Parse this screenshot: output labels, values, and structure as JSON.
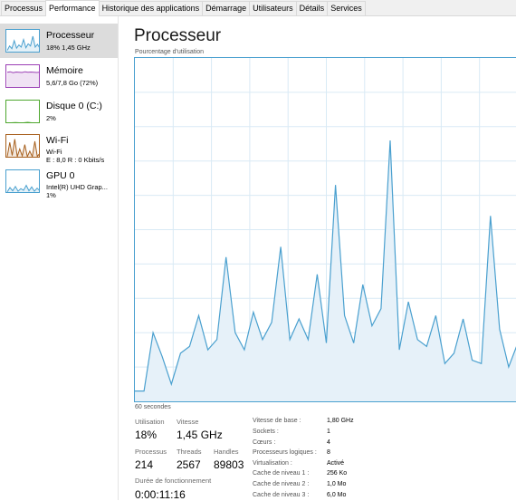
{
  "tabs": [
    "Processus",
    "Performance",
    "Historique des applications",
    "Démarrage",
    "Utilisateurs",
    "Détails",
    "Services"
  ],
  "active_tab": "Performance",
  "sidebar": [
    {
      "title": "Processeur",
      "sub1": "18% 1,45 GHz",
      "sub2": "",
      "color": "#4aa0cf",
      "icon": "cpu-spark",
      "selected": true,
      "spark": [
        0.1,
        0.3,
        0.18,
        0.55,
        0.2,
        0.35,
        0.25,
        0.6,
        0.22,
        0.4,
        0.3,
        0.75,
        0.25,
        0.38,
        0.2
      ]
    },
    {
      "title": "Mémoire",
      "sub1": "5,6/7,8 Go (72%)",
      "sub2": "",
      "color": "#9b3fb5",
      "icon": "memory-spark",
      "selected": false,
      "spark": [
        0.72,
        0.74,
        0.7,
        0.73,
        0.72,
        0.71,
        0.74,
        0.72,
        0.73,
        0.72,
        0.71,
        0.72
      ]
    },
    {
      "title": "Disque 0 (C:)",
      "sub1": "2%",
      "sub2": "",
      "color": "#4ea72e",
      "icon": "disk-spark",
      "selected": false,
      "spark": [
        0.02,
        0.02,
        0.03,
        0.02,
        0.02,
        0.04,
        0.02,
        0.02,
        0.02
      ]
    },
    {
      "title": "Wi-Fi",
      "sub1": "Wi-Fi",
      "sub2": "E : 8,0 R : 0 Kbits/s",
      "color": "#a75f1c",
      "icon": "wifi-spark",
      "selected": false,
      "spark": [
        0.05,
        0.7,
        0.1,
        0.85,
        0.05,
        0.4,
        0.08,
        0.6,
        0.05,
        0.3,
        0.05,
        0.75,
        0.06,
        0.2
      ]
    },
    {
      "title": "GPU 0",
      "sub1": "Intel(R) UHD Grap...",
      "sub2": "1%",
      "color": "#4aa0cf",
      "icon": "gpu-spark",
      "selected": false,
      "spark": [
        0.05,
        0.25,
        0.1,
        0.3,
        0.08,
        0.2,
        0.12,
        0.35,
        0.1,
        0.28,
        0.08,
        0.22,
        0.1
      ]
    }
  ],
  "main": {
    "title": "Processeur",
    "chart_label": "Pourcentage d'utilisation",
    "axis_foot": "60 secondes"
  },
  "chart_data": {
    "type": "area",
    "title": "Processeur",
    "ylabel": "Pourcentage d'utilisation",
    "xlabel": "60 secondes",
    "ylim": [
      0,
      100
    ],
    "grid": true,
    "color": "#4aa0cf",
    "fill": "#e6f1f9",
    "values": [
      3,
      3,
      20,
      13,
      5,
      14,
      16,
      25,
      15,
      18,
      42,
      20,
      15,
      26,
      18,
      23,
      45,
      18,
      24,
      18,
      37,
      17,
      63,
      25,
      17,
      34,
      22,
      27,
      76,
      15,
      29,
      18,
      16,
      25,
      11,
      14,
      24,
      12,
      11,
      54,
      21,
      10,
      17
    ]
  },
  "stats": {
    "utilisation_label": "Utilisation",
    "utilisation_value": "18%",
    "vitesse_label": "Vitesse",
    "vitesse_value": "1,45 GHz",
    "processus_label": "Processus",
    "processus_value": "214",
    "threads_label": "Threads",
    "threads_value": "2567",
    "handles_label": "Handles",
    "handles_value": "89803",
    "uptime_label": "Durée de fonctionnement",
    "uptime_value": "0:00:11:16"
  },
  "specs": [
    {
      "key": "Vitesse de base :",
      "value": "1,80 GHz"
    },
    {
      "key": "Sockets :",
      "value": "1"
    },
    {
      "key": "Cœurs :",
      "value": "4"
    },
    {
      "key": "Processeurs logiques :",
      "value": "8"
    },
    {
      "key": "Virtualisation :",
      "value": "Activé"
    },
    {
      "key": "Cache de niveau 1 :",
      "value": "256 Ko"
    },
    {
      "key": "Cache de niveau 2 :",
      "value": "1,0 Mo"
    },
    {
      "key": "Cache de niveau 3 :",
      "value": "6,0 Mo"
    }
  ]
}
